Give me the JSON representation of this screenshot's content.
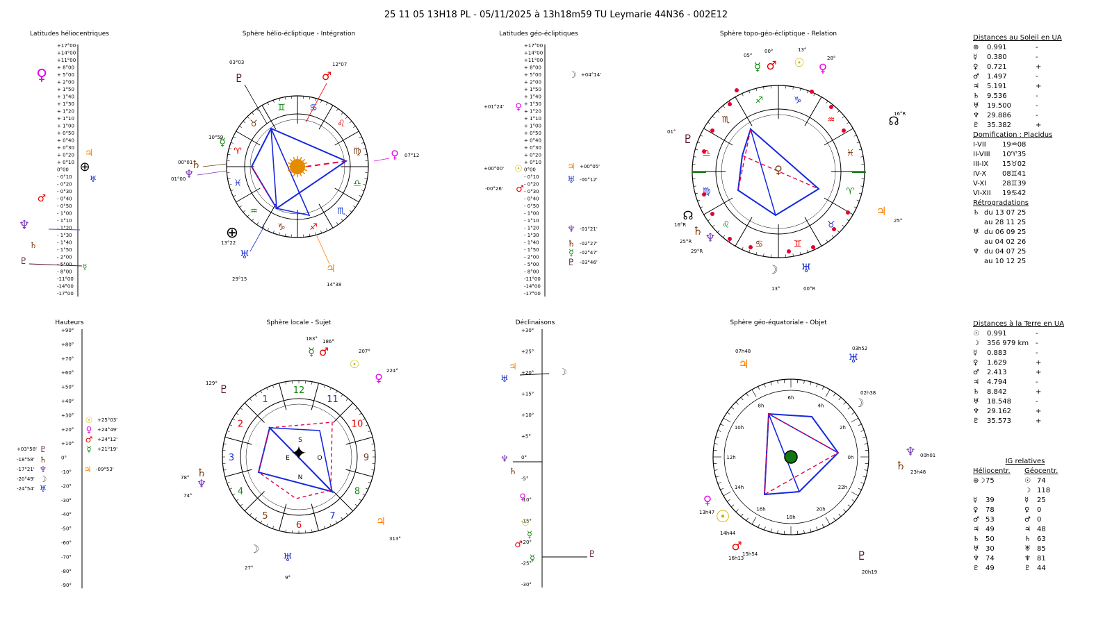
{
  "header": {
    "title": "25 11 05 13H18 PL   -  05/11/2025 à 13h18m59 TU  Leymarie  44N36 - 002E12"
  },
  "panels": {
    "lat_helio": "Latitudes héliocentriques",
    "sphere_helio": "Sphère hélio-écliptique - Intégration",
    "lat_geo": "Latitudes géo-écliptiques",
    "sphere_topo": "Sphère topo-géo-écliptique - Relation",
    "hauteurs": "Hauteurs",
    "sphere_locale": "Sphère locale - Sujet",
    "declinaisons": "Déclinaisons",
    "sphere_geo_eq": "Sphère géo-équatoriale - Objet"
  },
  "colors": {
    "sun": "#c8b400",
    "moon": "#555555",
    "mercury": "#118811",
    "venus": "#e600e6",
    "mars": "#e60000",
    "jupiter": "#ff7f00",
    "saturn": "#7a3b10",
    "uranus": "#1a33cc",
    "neptune": "#7733bb",
    "pluto": "#551133",
    "blue": "#1428e0",
    "red": "#e6004c"
  },
  "lat_scale": [
    "+17°00",
    "+14°00",
    "+11°00",
    "+ 8°00",
    "+ 5°00",
    "+ 2°00",
    "+ 1°50",
    "+ 1°40",
    "+ 1°30",
    "+ 1°20",
    "+ 1°10",
    "+ 1°00",
    "+ 0°50",
    "+ 0°40",
    "+ 0°30",
    "+ 0°20",
    "+ 0°10",
    "0°00",
    "- 0°10",
    "- 0°20",
    "- 0°30",
    "- 0°40",
    "- 0°50",
    "- 1°00",
    "- 1°10",
    "- 1°20",
    "- 1°30",
    "- 1°40",
    "- 1°50",
    "- 2°00",
    "- 5°00",
    "- 8°00",
    "-11°00",
    "-14°00",
    "-17°00"
  ],
  "height_scale": [
    "+90°",
    "+80°",
    "+70°",
    "+60°",
    "+50°",
    "+40°",
    "+30°",
    "+20°",
    "+10°",
    "0°",
    "-10°",
    "-20°",
    "-30°",
    "-40°",
    "-50°",
    "-60°",
    "-70°",
    "-80°",
    "-90°"
  ],
  "decl_scale": [
    "+30°",
    "+25°",
    "+20°",
    "+15°",
    "+10°",
    "+5°",
    "0°",
    "-5°",
    "-10°",
    "-15°",
    "-20°",
    "-25°",
    "-30°"
  ],
  "lat_geo_labels": {
    "moon": "+04°14'",
    "venus": "+01°24'",
    "jupiter": "+00°05'",
    "sun": "+00°00'",
    "uranus": "-00°12'",
    "mars": "-00°26'",
    "neptune": "-01°21'",
    "saturn": "-02°27'",
    "mercury": "-02°47'",
    "pluto": "-03°46'"
  },
  "heights_labels": {
    "sun": "+25°03'",
    "venus": "+24°49'",
    "mars": "+24°12'",
    "mercury": "+21°19'",
    "jupiter": "-09°53'",
    "pluto": "+03°58'",
    "saturn": "-18°58'",
    "neptune": "-17°21'",
    "moon": "-20°49'",
    "uranus": "-24°54'"
  },
  "helio_labels": {
    "pluto": "03°03",
    "mars": "12°07",
    "mercury": "10°59",
    "venus": "07°12",
    "saturn": "00°01",
    "neptune": "01°00",
    "earth": "13°22",
    "uranus": "29°15",
    "jupiter": "14°38"
  },
  "topo_labels": {
    "mercury": "05°",
    "mars": "00°",
    "sun": "13°",
    "venus": "28°",
    "pluto": "01°",
    "node": "16°R",
    "saturn": "25°R",
    "neptune": "29°R",
    "moon": "13°",
    "uranus": "00°R",
    "jupiter": "25°",
    "node2": "16°R"
  },
  "locale_labels": {
    "mercury": "183°",
    "mars": "186°",
    "sun": "207°",
    "venus": "224°",
    "pluto": "129°",
    "saturn": "78°",
    "neptune": "74°",
    "moon": "27°",
    "uranus": "9°",
    "jupiter": "313°"
  },
  "eq_labels": {
    "jupiter": "07h48",
    "uranus": "03h52",
    "moon": "02h38",
    "neptune": "00h01",
    "saturn": "23h48",
    "venus": "13h47",
    "sun": "14h44",
    "mercury": "15h54",
    "mars": "16h13",
    "pluto": "20h19"
  },
  "zodiac_signs": [
    "♈",
    "♉",
    "♊",
    "♋",
    "♌",
    "♍",
    "♎",
    "♏",
    "♐",
    "♑",
    "♒",
    "♓"
  ],
  "house_numbers": [
    "1",
    "2",
    "3",
    "4",
    "5",
    "6",
    "7",
    "8",
    "9",
    "10",
    "11",
    "12"
  ],
  "eq_hours": [
    "0h",
    "2h",
    "4h",
    "6h",
    "8h",
    "10h",
    "12h",
    "14h",
    "16h",
    "18h",
    "20h",
    "22h"
  ],
  "compass": {
    "s": "S",
    "o": "O",
    "n": "N",
    "e": "E"
  },
  "sun_distances": {
    "header": "Distances au Soleil en UA",
    "rows": [
      {
        "g": "⊕",
        "v": "0.991",
        "s": "-"
      },
      {
        "g": "☿",
        "v": "0.380",
        "s": "-"
      },
      {
        "g": "♀",
        "v": "0.721",
        "s": "+"
      },
      {
        "g": "♂",
        "v": "1.497",
        "s": "-"
      },
      {
        "g": "♃",
        "v": "5.191",
        "s": "+"
      },
      {
        "g": "♄",
        "v": "9.536",
        "s": "-"
      },
      {
        "g": "♅",
        "v": "19.500",
        "s": "-"
      },
      {
        "g": "♆",
        "v": "29.886",
        "s": "-"
      },
      {
        "g": "♇",
        "v": "35.382",
        "s": "+"
      }
    ]
  },
  "domification": {
    "header": "Domification : Placidus",
    "rows": [
      {
        "k": "I-VII",
        "v": "19♒08"
      },
      {
        "k": "II-VIII",
        "v": "10♈35"
      },
      {
        "k": "III-IX",
        "v": "15♉02"
      },
      {
        "k": "IV-X",
        "v": "08♊41"
      },
      {
        "k": "V-XI",
        "v": "28♊39"
      },
      {
        "k": "VI-XII",
        "v": "19♋42"
      }
    ]
  },
  "retrogradations": {
    "header": "Rétrogradations",
    "rows": [
      {
        "g": "♄",
        "v": "du 13 07 25 au 28 11 25"
      },
      {
        "g": "♅",
        "v": "du 06 09 25 au 04 02 26"
      },
      {
        "g": "♆",
        "v": "du 04 07 25 au 10 12 25"
      }
    ]
  },
  "earth_distances": {
    "header": "Distances à la Terre en UA",
    "rows": [
      {
        "g": "☉",
        "v": "0.991",
        "s": "-"
      },
      {
        "g": "☽",
        "v": "356 979 km",
        "s": "-"
      },
      {
        "g": "☿",
        "v": "0.883",
        "s": "-"
      },
      {
        "g": "♀",
        "v": "1.629",
        "s": "+"
      },
      {
        "g": "♂",
        "v": "2.413",
        "s": "+"
      },
      {
        "g": "♃",
        "v": "4.794",
        "s": "-"
      },
      {
        "g": "♄",
        "v": "8.842",
        "s": "+"
      },
      {
        "g": "♅",
        "v": "18.548",
        "s": "-"
      },
      {
        "g": "♆",
        "v": "29.162",
        "s": "+"
      },
      {
        "g": "♇",
        "v": "35.573",
        "s": "+"
      }
    ]
  },
  "ig_relatives": {
    "header": "IG relatives",
    "col1": "Héliocentr.",
    "col2": "Géocentr.",
    "rows": [
      {
        "a": "⊕☽",
        "b": "75",
        "c": "☉",
        "d": "74"
      },
      {
        "a": "",
        "b": "",
        "c": "☽",
        "d": "118"
      },
      {
        "a": "☿",
        "b": "39",
        "c": "☿",
        "d": "25"
      },
      {
        "a": "♀",
        "b": "78",
        "c": "♀",
        "d": "0"
      },
      {
        "a": "♂",
        "b": "53",
        "c": "♂",
        "d": "0"
      },
      {
        "a": "♃",
        "b": "49",
        "c": "♃",
        "d": "48"
      },
      {
        "a": "♄",
        "b": "50",
        "c": "♄",
        "d": "63"
      },
      {
        "a": "♅",
        "b": "30",
        "c": "♅",
        "d": "85"
      },
      {
        "a": "♆",
        "b": "74",
        "c": "♆",
        "d": "81"
      },
      {
        "a": "♇",
        "b": "49",
        "c": "♇",
        "d": "44"
      }
    ]
  }
}
